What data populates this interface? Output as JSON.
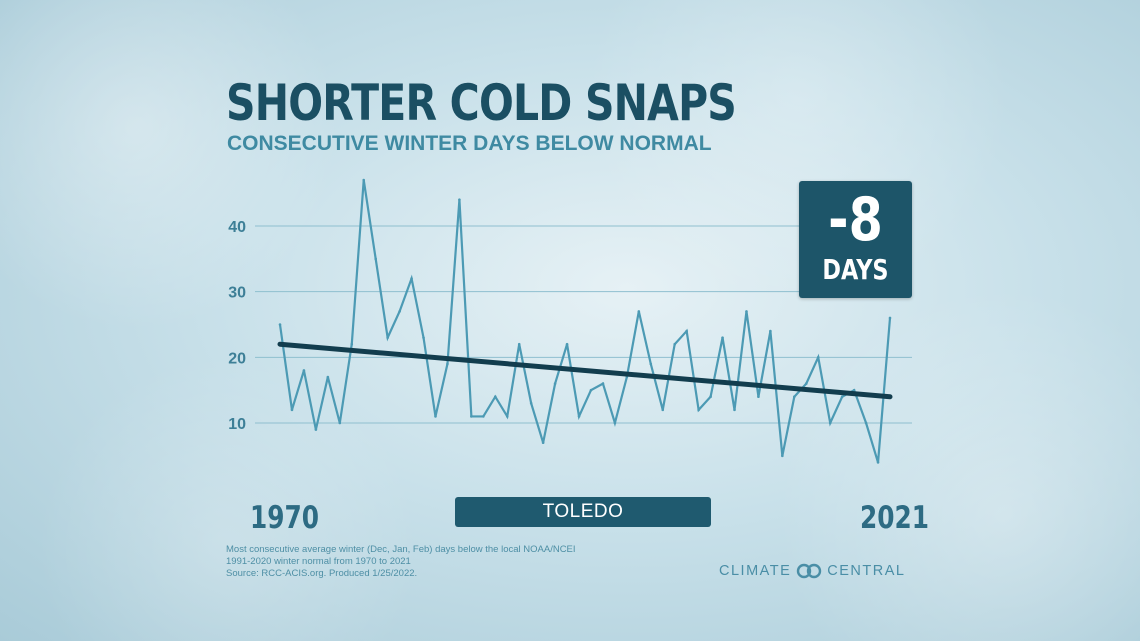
{
  "header": {
    "title": "SHORTER COLD SNAPS",
    "subtitle": "CONSECUTIVE WINTER DAYS BELOW NORMAL"
  },
  "badge": {
    "value": "-8",
    "unit": "DAYS"
  },
  "footer": {
    "start_year": "1970",
    "end_year": "2021",
    "location": "TOLEDO",
    "source_lines": [
      "Most consecutive average winter (Dec, Jan, Feb) days below the local NOAA/NCEI",
      "1991-2020 winter normal from 1970 to 2021",
      "Source: RCC-ACIS.org. Produced 1/25/2022."
    ],
    "brand_left": "CLIMATE",
    "brand_right": "CENTRAL",
    "brand_logo_icon": "interlocking-rings-logo"
  },
  "colors": {
    "title": "#1b4f63",
    "subtitle": "#3f8aa2",
    "series_line": "#4c9ab4",
    "trend_line": "#123d4e",
    "badge_bg": "#1d5569",
    "gridline": "#8fbfcf"
  },
  "chart_data": {
    "type": "line",
    "x": [
      1970,
      1971,
      1972,
      1973,
      1974,
      1975,
      1976,
      1977,
      1978,
      1979,
      1980,
      1981,
      1982,
      1983,
      1984,
      1985,
      1986,
      1987,
      1988,
      1989,
      1990,
      1991,
      1992,
      1993,
      1994,
      1995,
      1996,
      1997,
      1998,
      1999,
      2000,
      2001,
      2002,
      2003,
      2004,
      2005,
      2006,
      2007,
      2008,
      2009,
      2010,
      2011,
      2012,
      2013,
      2014,
      2015,
      2016,
      2017,
      2018,
      2019,
      2020,
      2021
    ],
    "series": [
      {
        "values": [
          25,
          12,
          18,
          9,
          17,
          10,
          22,
          47,
          35,
          23,
          27,
          32,
          23,
          11,
          19,
          44,
          11,
          11,
          14,
          11,
          22,
          13,
          7,
          16,
          22,
          11,
          15,
          16,
          10,
          17,
          27,
          19,
          12,
          22,
          24,
          12,
          14,
          23,
          12,
          27,
          14,
          24,
          5,
          14,
          16,
          20,
          10,
          14,
          15,
          10,
          4,
          26
        ]
      }
    ],
    "trend": {
      "start": [
        1970,
        22
      ],
      "end": [
        2021,
        14
      ]
    },
    "y_ticks": [
      10,
      20,
      30,
      40
    ],
    "ylim": [
      0,
      50
    ],
    "grid": true,
    "xlabel": "",
    "ylabel": ""
  }
}
